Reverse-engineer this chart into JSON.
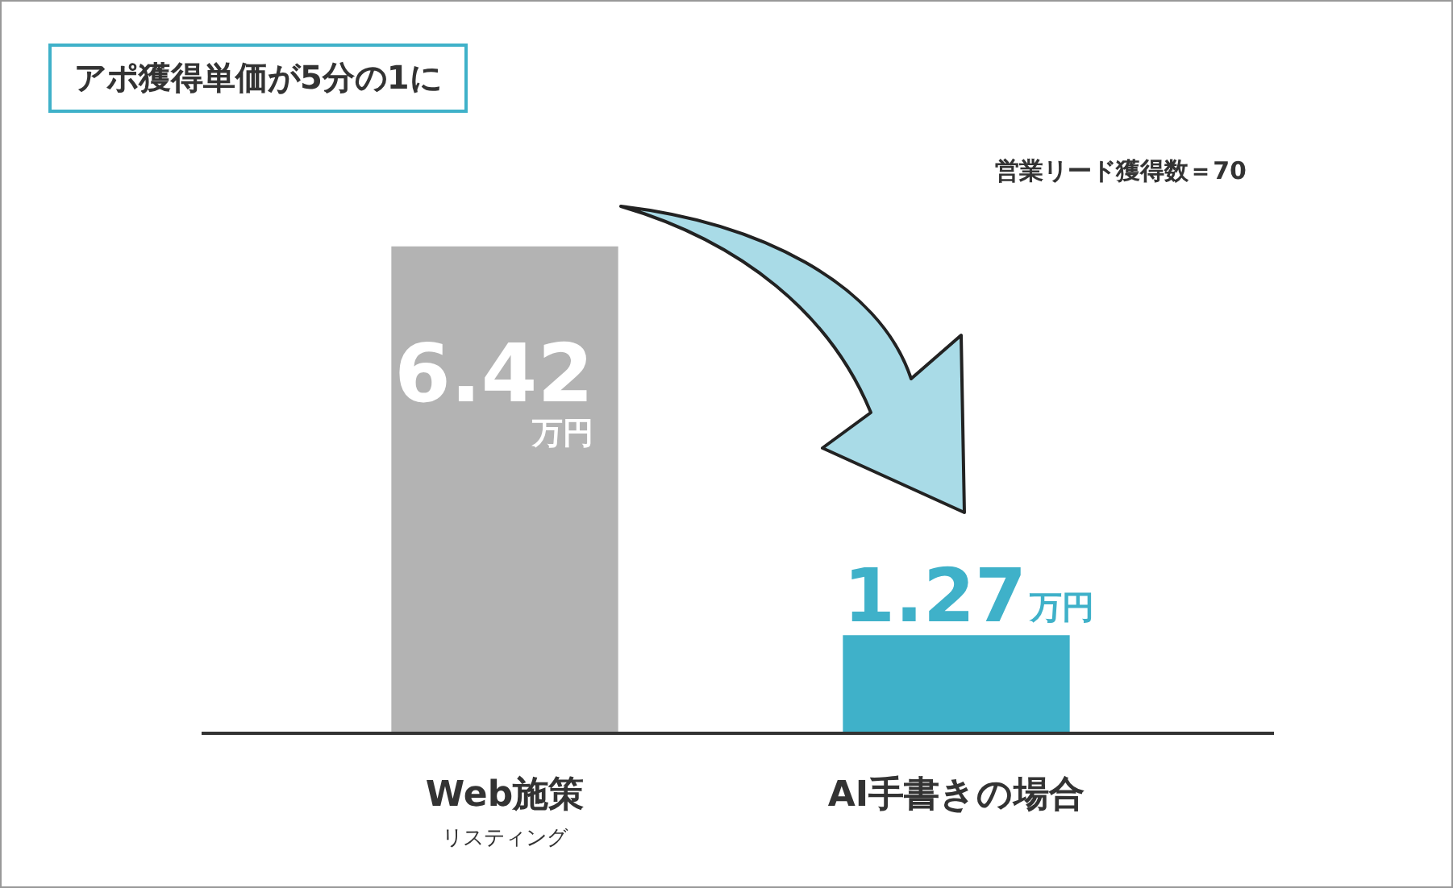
{
  "chart_data": {
    "type": "bar",
    "title": "アポ獲得単価が5分の1に",
    "categories": [
      "Web施策",
      "AI手書きの場合"
    ],
    "values": [
      6.42,
      1.27
    ],
    "colors": [
      "#b3b3b3",
      "#3fb1c9"
    ],
    "value_labels": [
      "6.42万円",
      "1.27万円"
    ],
    "annotations": [
      "営業リード獲得数＝70",
      "リスティング"
    ]
  }
}
